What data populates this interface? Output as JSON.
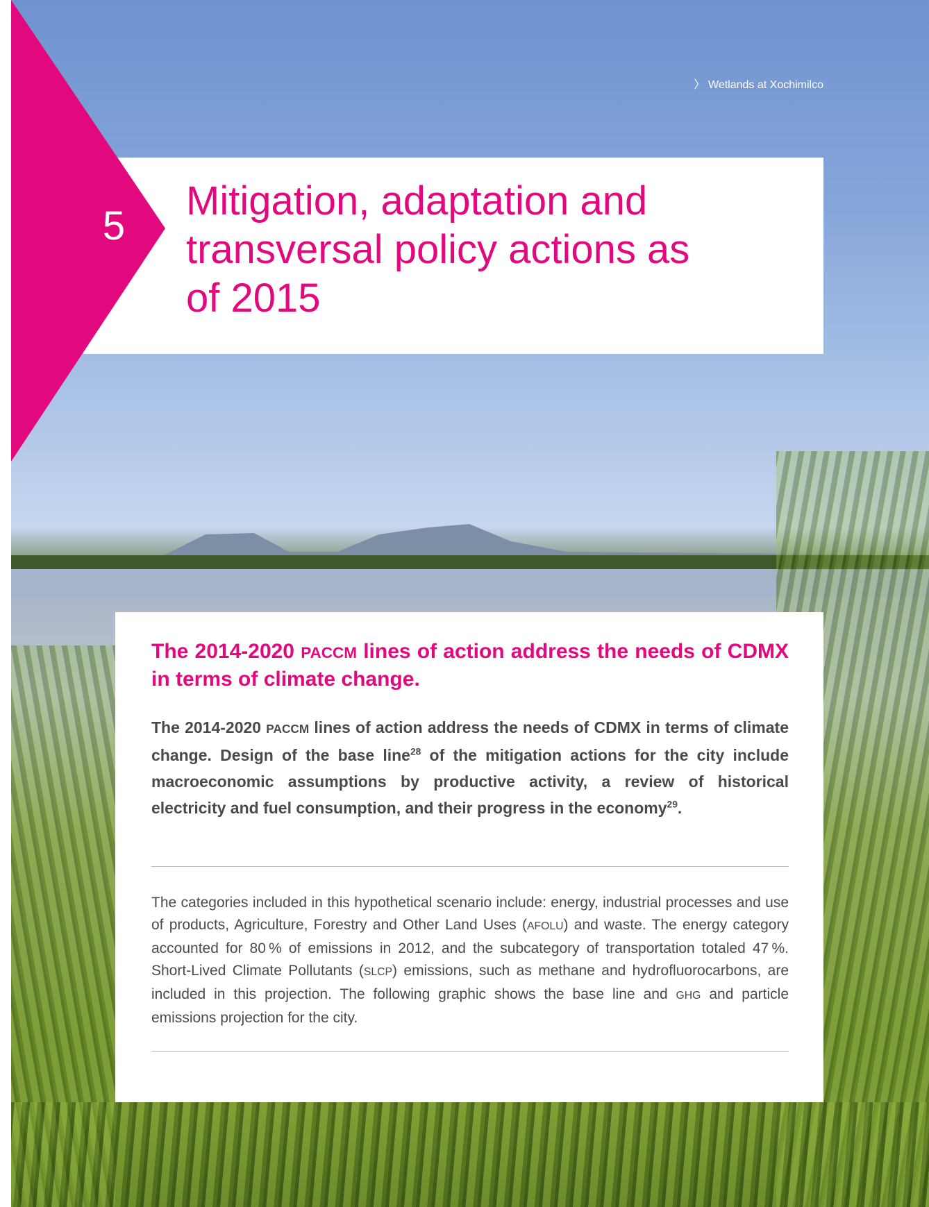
{
  "caption": {
    "marker": "〉",
    "text": "Wetlands at Xochimilco"
  },
  "chapter": {
    "number": "5",
    "title_lines": [
      "Mitigation, adaptation and",
      "transversal policy actions as",
      "of 2015"
    ]
  },
  "content": {
    "heading": [
      "The 2014-2020 ",
      "PACCM",
      " lines of action address the needs of CDMX in terms of climate change."
    ],
    "lead": [
      "The 2014-2020 ",
      "PACCM",
      " lines of action address the needs of CDMX in terms of climate change. Design of the base line",
      "28",
      " of the mitigation actions for the city include macroeconomic assumptions by productive activity, a review of historical electricity and fuel consumption, and their progress in the economy",
      "29",
      "."
    ],
    "body": [
      "The categories included in this hypothetical scenario include: energy, industrial proces­ses and use of products, Agriculture, Forestry and Other Land Uses (",
      "AFOLU",
      ") and waste. The energy category accounted for 80 % of emissions in 2012, and the subcategory of transportation totaled 47 %. Short-Lived Climate Pollutants (",
      "SLCP",
      ") emissions, such as methane and hydrofluorocarbons, are included in this projection. The following graphic shows the base line and ",
      "GHG",
      " and particle emissions projection for the city."
    ]
  }
}
